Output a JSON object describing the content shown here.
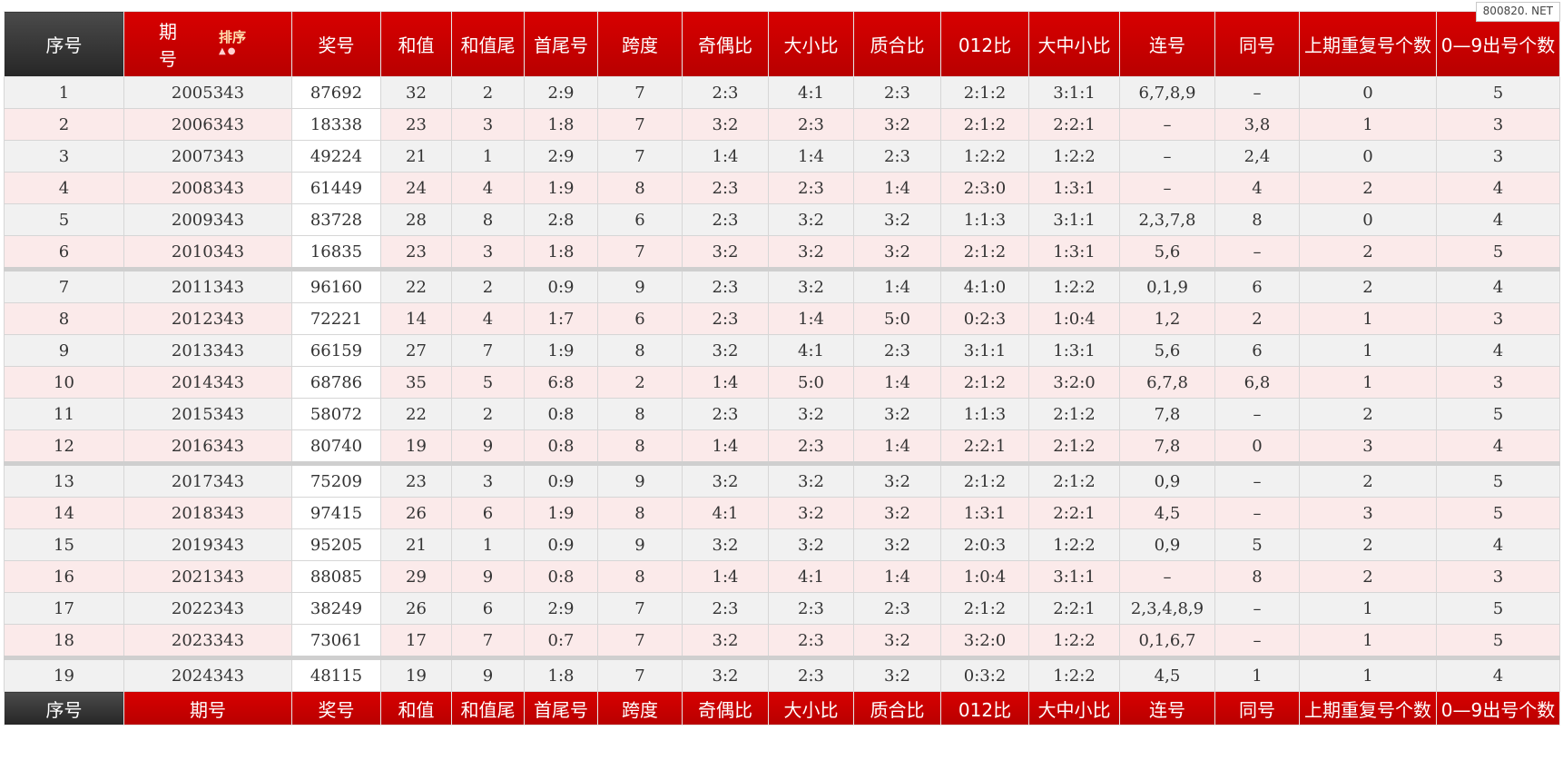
{
  "watermark": "800820. NET",
  "header": {
    "seq": "序号",
    "issue_top": "期",
    "issue_bottom": "号",
    "sort_label": "排序",
    "sort_arrows": "▲●",
    "num": "奖号",
    "sum": "和值",
    "sumtail": "和值尾",
    "firstlast": "首尾号",
    "span": "跨度",
    "oddeven": "奇偶比",
    "bigsmall": "大小比",
    "primecomp": "质合比",
    "r012": "012比",
    "bms": "大中小比",
    "consec": "连号",
    "same": "同号",
    "repeat": "上期重复号个数",
    "count09": "0—9出号个数"
  },
  "footer": {
    "seq": "序号",
    "issue": "期号",
    "num": "奖号",
    "sum": "和值",
    "sumtail": "和值尾",
    "firstlast": "首尾号",
    "span": "跨度",
    "oddeven": "奇偶比",
    "bigsmall": "大小比",
    "primecomp": "质合比",
    "r012": "012比",
    "bms": "大中小比",
    "consec": "连号",
    "same": "同号",
    "repeat": "上期重复号个数",
    "count09": "0—9出号个数"
  },
  "rows": [
    [
      "1",
      "2005343",
      "87692",
      "32",
      "2",
      "2:9",
      "7",
      "2:3",
      "4:1",
      "2:3",
      "2:1:2",
      "3:1:1",
      "6,7,8,9",
      "–",
      "0",
      "5"
    ],
    [
      "2",
      "2006343",
      "18338",
      "23",
      "3",
      "1:8",
      "7",
      "3:2",
      "2:3",
      "3:2",
      "2:1:2",
      "2:2:1",
      "–",
      "3,8",
      "1",
      "3"
    ],
    [
      "3",
      "2007343",
      "49224",
      "21",
      "1",
      "2:9",
      "7",
      "1:4",
      "1:4",
      "2:3",
      "1:2:2",
      "1:2:2",
      "–",
      "2,4",
      "0",
      "3"
    ],
    [
      "4",
      "2008343",
      "61449",
      "24",
      "4",
      "1:9",
      "8",
      "2:3",
      "2:3",
      "1:4",
      "2:3:0",
      "1:3:1",
      "–",
      "4",
      "2",
      "4"
    ],
    [
      "5",
      "2009343",
      "83728",
      "28",
      "8",
      "2:8",
      "6",
      "2:3",
      "3:2",
      "3:2",
      "1:1:3",
      "3:1:1",
      "2,3,7,8",
      "8",
      "0",
      "4"
    ],
    [
      "6",
      "2010343",
      "16835",
      "23",
      "3",
      "1:8",
      "7",
      "3:2",
      "3:2",
      "3:2",
      "2:1:2",
      "1:3:1",
      "5,6",
      "–",
      "2",
      "5"
    ],
    [
      "7",
      "2011343",
      "96160",
      "22",
      "2",
      "0:9",
      "9",
      "2:3",
      "3:2",
      "1:4",
      "4:1:0",
      "1:2:2",
      "0,1,9",
      "6",
      "2",
      "4"
    ],
    [
      "8",
      "2012343",
      "72221",
      "14",
      "4",
      "1:7",
      "6",
      "2:3",
      "1:4",
      "5:0",
      "0:2:3",
      "1:0:4",
      "1,2",
      "2",
      "1",
      "3"
    ],
    [
      "9",
      "2013343",
      "66159",
      "27",
      "7",
      "1:9",
      "8",
      "3:2",
      "4:1",
      "2:3",
      "3:1:1",
      "1:3:1",
      "5,6",
      "6",
      "1",
      "4"
    ],
    [
      "10",
      "2014343",
      "68786",
      "35",
      "5",
      "6:8",
      "2",
      "1:4",
      "5:0",
      "1:4",
      "2:1:2",
      "3:2:0",
      "6,7,8",
      "6,8",
      "1",
      "3"
    ],
    [
      "11",
      "2015343",
      "58072",
      "22",
      "2",
      "0:8",
      "8",
      "2:3",
      "3:2",
      "3:2",
      "1:1:3",
      "2:1:2",
      "7,8",
      "–",
      "2",
      "5"
    ],
    [
      "12",
      "2016343",
      "80740",
      "19",
      "9",
      "0:8",
      "8",
      "1:4",
      "2:3",
      "1:4",
      "2:2:1",
      "2:1:2",
      "7,8",
      "0",
      "3",
      "4"
    ],
    [
      "13",
      "2017343",
      "75209",
      "23",
      "3",
      "0:9",
      "9",
      "3:2",
      "3:2",
      "3:2",
      "2:1:2",
      "2:1:2",
      "0,9",
      "–",
      "2",
      "5"
    ],
    [
      "14",
      "2018343",
      "97415",
      "26",
      "6",
      "1:9",
      "8",
      "4:1",
      "3:2",
      "3:2",
      "1:3:1",
      "2:2:1",
      "4,5",
      "–",
      "3",
      "5"
    ],
    [
      "15",
      "2019343",
      "95205",
      "21",
      "1",
      "0:9",
      "9",
      "3:2",
      "3:2",
      "3:2",
      "2:0:3",
      "1:2:2",
      "0,9",
      "5",
      "2",
      "4"
    ],
    [
      "16",
      "2021343",
      "88085",
      "29",
      "9",
      "0:8",
      "8",
      "1:4",
      "4:1",
      "1:4",
      "1:0:4",
      "3:1:1",
      "–",
      "8",
      "2",
      "3"
    ],
    [
      "17",
      "2022343",
      "38249",
      "26",
      "6",
      "2:9",
      "7",
      "2:3",
      "2:3",
      "2:3",
      "2:1:2",
      "2:2:1",
      "2,3,4,8,9",
      "–",
      "1",
      "5"
    ],
    [
      "18",
      "2023343",
      "73061",
      "17",
      "7",
      "0:7",
      "7",
      "3:2",
      "2:3",
      "3:2",
      "3:2:0",
      "1:2:2",
      "0,1,6,7",
      "–",
      "1",
      "5"
    ],
    [
      "19",
      "2024343",
      "48115",
      "19",
      "9",
      "1:8",
      "7",
      "3:2",
      "2:3",
      "3:2",
      "0:3:2",
      "1:2:2",
      "4,5",
      "1",
      "1",
      "4"
    ]
  ]
}
